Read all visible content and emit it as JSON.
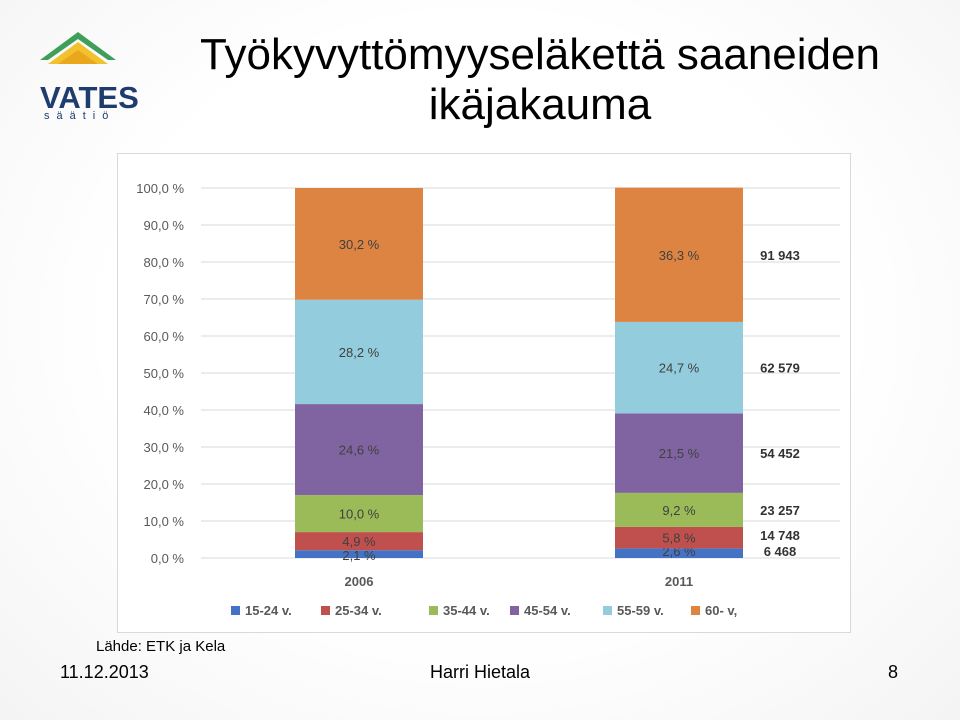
{
  "logo": {
    "name": "VATES",
    "sub": "säätiö"
  },
  "title": "Työkyvyttömyyseläkettä saaneiden ikäjakauma",
  "source": "Lähde: ETK ja Kela",
  "footer": {
    "date": "11.12.2013",
    "author": "Harri Hietala",
    "page": "8"
  },
  "colors": {
    "15-24": "#4472c4",
    "25-34": "#c0504d",
    "35-44": "#9bbb59",
    "45-54": "#8064a2",
    "55-59": "#93cddd",
    "60+": "#dd8443"
  },
  "chart_data": {
    "type": "bar",
    "stacked": true,
    "percent": true,
    "categories": [
      "2006",
      "2011"
    ],
    "ylim": [
      0,
      100
    ],
    "yticks": [
      "0,0 %",
      "10,0 %",
      "20,0 %",
      "30,0 %",
      "40,0 %",
      "50,0 %",
      "60,0 %",
      "70,0 %",
      "80,0 %",
      "90,0 %",
      "100,0 %"
    ],
    "grid": true,
    "legend_position": "bottom",
    "series": [
      {
        "name": "15-24 v.",
        "color": "#4472c4",
        "values": [
          2.1,
          2.6
        ],
        "labels": [
          "2,1 %",
          "2,6 %"
        ],
        "count_2011": "6 468"
      },
      {
        "name": "25-34 v.",
        "color": "#c0504d",
        "values": [
          4.9,
          5.8
        ],
        "labels": [
          "4,9 %",
          "5,8 %"
        ],
        "count_2011": "14 748"
      },
      {
        "name": "35-44 v.",
        "color": "#9bbb59",
        "values": [
          10.0,
          9.2
        ],
        "labels": [
          "10,0 %",
          "9,2 %"
        ],
        "count_2011": "23 257"
      },
      {
        "name": "45-54 v.",
        "color": "#8064a2",
        "values": [
          24.6,
          21.5
        ],
        "labels": [
          "24,6 %",
          "21,5 %"
        ],
        "count_2011": "54 452"
      },
      {
        "name": "55-59 v.",
        "color": "#93cddd",
        "values": [
          28.2,
          24.7
        ],
        "labels": [
          "28,2 %",
          "24,7 %"
        ],
        "count_2011": "62 579"
      },
      {
        "name": "60- v,",
        "color": "#dd8443",
        "values": [
          30.2,
          36.3
        ],
        "labels": [
          "30,2 %",
          "36,3 %"
        ],
        "count_2011": "91 943"
      }
    ]
  }
}
